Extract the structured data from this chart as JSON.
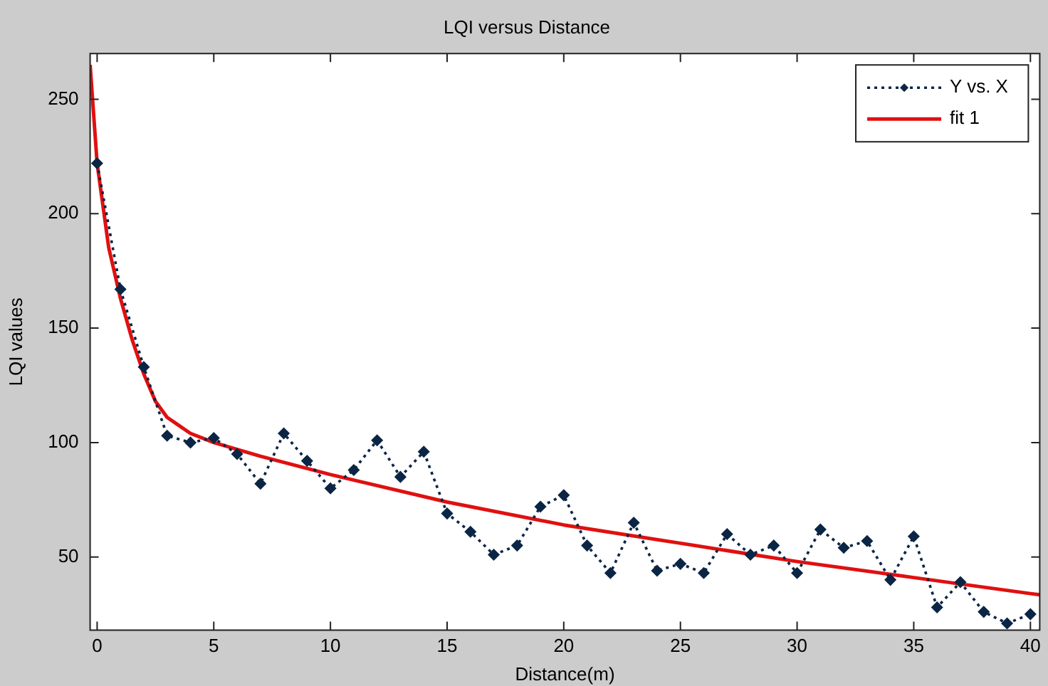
{
  "chart_data": {
    "type": "line",
    "title": "LQI versus Distance",
    "xlabel": "Distance(m)",
    "ylabel": "LQI values",
    "xlim": [
      -0.3,
      40.4
    ],
    "xticks": [
      0,
      5,
      10,
      15,
      20,
      25,
      30,
      35,
      40
    ],
    "ylim": [
      18,
      270
    ],
    "yticks": [
      50,
      100,
      150,
      200,
      250
    ],
    "legend": "top right",
    "series": [
      {
        "name": "Y vs. X",
        "color": "#0b2545",
        "marker": "diamond",
        "line_style": "dotted",
        "x": [
          0,
          1,
          2,
          3,
          4,
          5,
          6,
          7,
          8,
          9,
          10,
          11,
          12,
          13,
          14,
          15,
          16,
          17,
          18,
          19,
          20,
          21,
          22,
          23,
          24,
          25,
          26,
          27,
          28,
          29,
          30,
          31,
          32,
          33,
          34,
          35,
          36,
          37,
          38,
          39,
          40
        ],
        "values": [
          222,
          167,
          133,
          103,
          100,
          102,
          95,
          82,
          104,
          92,
          80,
          88,
          101,
          85,
          96,
          69,
          61,
          51,
          55,
          72,
          77,
          55,
          43,
          65,
          44,
          47,
          43,
          60,
          51,
          55,
          43,
          62,
          54,
          57,
          40,
          59,
          28,
          39,
          26,
          21,
          25
        ]
      },
      {
        "name": "fit 1",
        "color": "#e01010",
        "marker": "none",
        "line_style": "solid",
        "x": [
          -0.3,
          0,
          0.5,
          1,
          1.5,
          2,
          2.5,
          3,
          4,
          5,
          7,
          10,
          15,
          20,
          25,
          30,
          35,
          40,
          40.4
        ],
        "values": [
          265,
          222,
          185,
          163,
          145,
          130,
          118,
          111,
          104,
          100,
          94,
          86,
          74,
          64,
          56,
          48,
          41,
          34,
          33.5
        ]
      }
    ]
  }
}
